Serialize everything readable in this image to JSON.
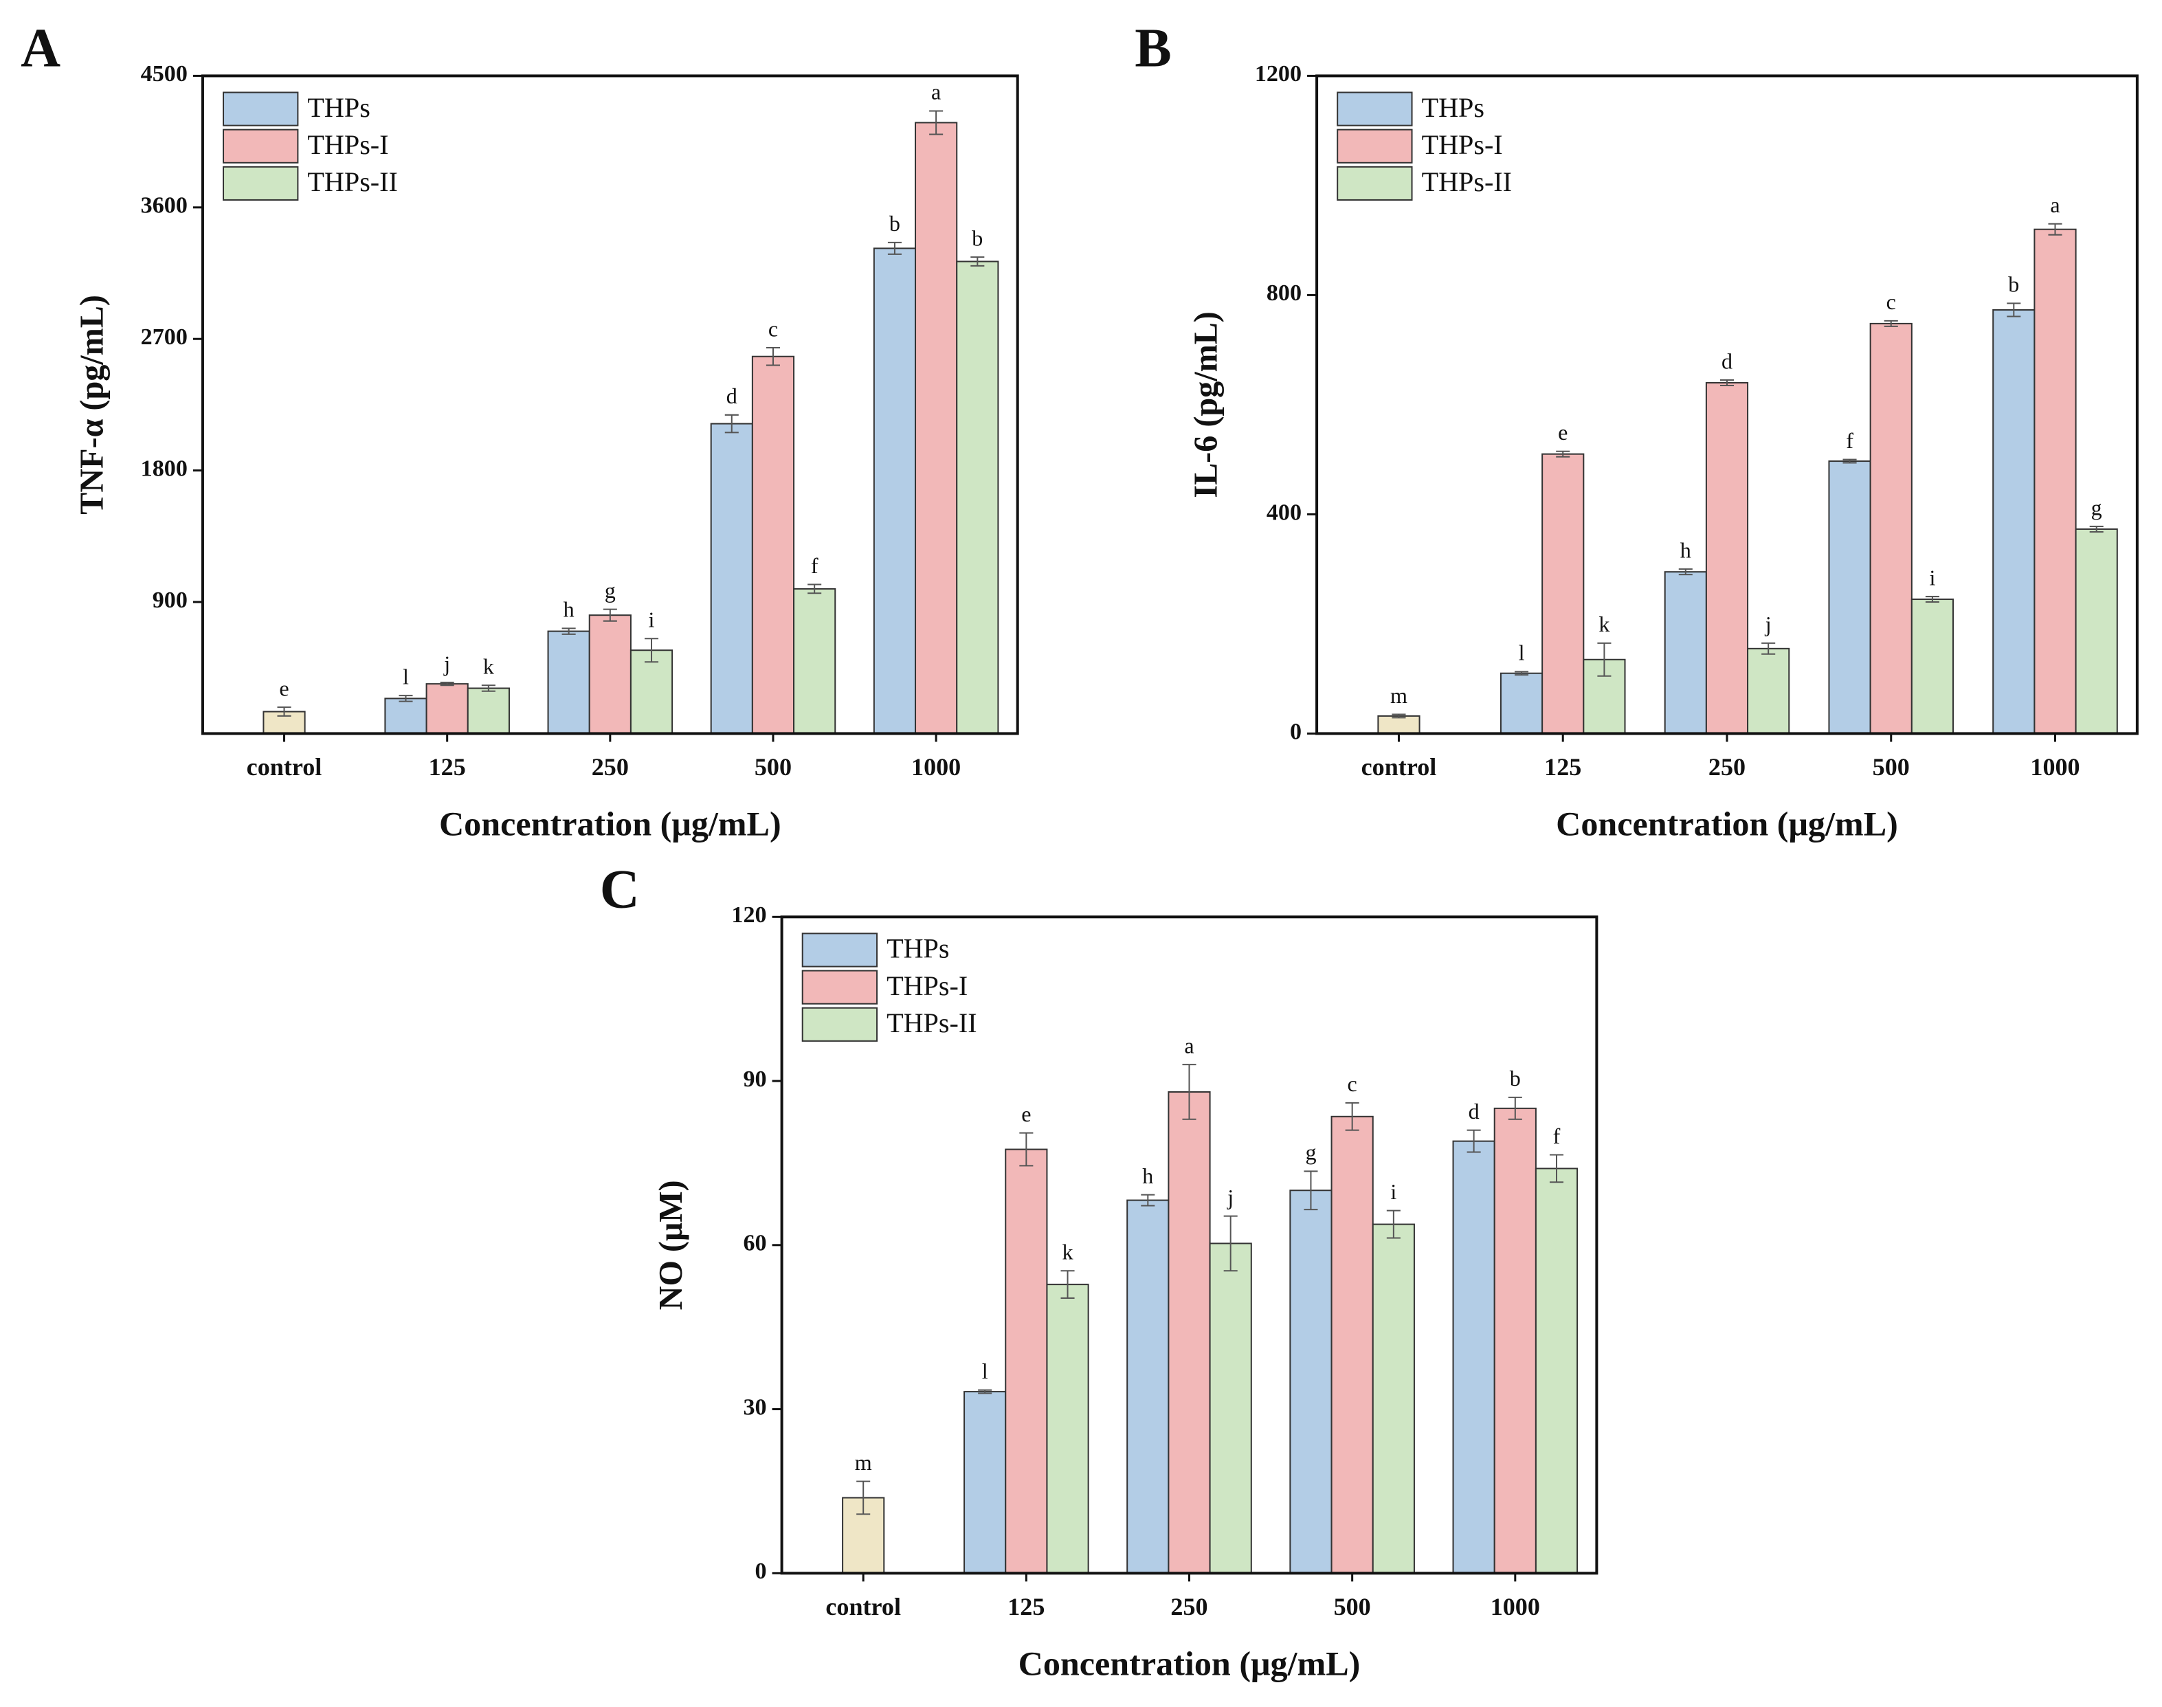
{
  "chart_data": [
    {
      "type": "bar",
      "panel": "A",
      "ylabel": "TNF-α (pg/mL)",
      "xlabel": "Concentration (μg/mL)",
      "categories": [
        "control",
        "125",
        "250",
        "500",
        "1000"
      ],
      "ylim": [
        0,
        4500
      ],
      "yticks": [
        900,
        1800,
        2700,
        3600,
        4500
      ],
      "control": {
        "value": 150,
        "error": 30,
        "label": "e",
        "color": "#efe6c6"
      },
      "series": [
        {
          "name": "THPs",
          "color": "#b3cde6",
          "values": [
            null,
            240,
            700,
            2120,
            3320
          ],
          "errors": [
            null,
            20,
            20,
            60,
            40
          ],
          "labels": [
            null,
            "l",
            "h",
            "d",
            "b"
          ]
        },
        {
          "name": "THPs-I",
          "color": "#f2b8b8",
          "values": [
            null,
            340,
            810,
            2580,
            4180
          ],
          "errors": [
            null,
            10,
            40,
            60,
            80
          ],
          "labels": [
            null,
            "j",
            "g",
            "c",
            "a"
          ]
        },
        {
          "name": "THPs-II",
          "color": "#cfe6c4",
          "values": [
            null,
            310,
            570,
            990,
            3230
          ],
          "errors": [
            null,
            20,
            80,
            30,
            30
          ],
          "labels": [
            null,
            "k",
            "i",
            "f",
            "b"
          ]
        }
      ]
    },
    {
      "type": "bar",
      "panel": "B",
      "ylabel": "IL-6 (pg/mL)",
      "xlabel": "Concentration (μg/mL)",
      "categories": [
        "control",
        "125",
        "250",
        "500",
        "1000"
      ],
      "ylim": [
        0,
        1200
      ],
      "yticks": [
        0,
        400,
        800,
        1200
      ],
      "control": {
        "value": 32,
        "error": 3,
        "label": "m",
        "color": "#efe6c6"
      },
      "series": [
        {
          "name": "THPs",
          "color": "#b3cde6",
          "values": [
            null,
            110,
            295,
            497,
            773
          ],
          "errors": [
            null,
            3,
            5,
            3,
            12
          ],
          "labels": [
            null,
            "l",
            "h",
            "f",
            "b"
          ]
        },
        {
          "name": "THPs-I",
          "color": "#f2b8b8",
          "values": [
            null,
            510,
            640,
            748,
            920
          ],
          "errors": [
            null,
            5,
            5,
            5,
            10
          ],
          "labels": [
            null,
            "e",
            "d",
            "c",
            "a"
          ]
        },
        {
          "name": "THPs-II",
          "color": "#cfe6c4",
          "values": [
            null,
            135,
            155,
            245,
            373
          ],
          "errors": [
            null,
            30,
            10,
            5,
            5
          ],
          "labels": [
            null,
            "k",
            "j",
            "i",
            "g"
          ]
        }
      ]
    },
    {
      "type": "bar",
      "panel": "C",
      "ylabel": "NO (μM)",
      "xlabel": "Concentration (μg/mL)",
      "categories": [
        "control",
        "125",
        "250",
        "500",
        "1000"
      ],
      "ylim": [
        0,
        120
      ],
      "yticks": [
        0,
        30,
        60,
        90,
        120
      ],
      "control": {
        "value": 13.8,
        "error": 3,
        "label": "m",
        "color": "#efe6c6"
      },
      "series": [
        {
          "name": "THPs",
          "color": "#b3cde6",
          "values": [
            null,
            33.2,
            68.2,
            70,
            79
          ],
          "errors": [
            null,
            0.3,
            1,
            3.5,
            2
          ],
          "labels": [
            null,
            "l",
            "h",
            "g",
            "d"
          ]
        },
        {
          "name": "THPs-I",
          "color": "#f2b8b8",
          "values": [
            null,
            77.5,
            88,
            83.5,
            85
          ],
          "errors": [
            null,
            3,
            5,
            2.5,
            2
          ],
          "labels": [
            null,
            "e",
            "a",
            "c",
            "b"
          ]
        },
        {
          "name": "THPs-II",
          "color": "#cfe6c4",
          "values": [
            null,
            52.8,
            60.3,
            63.8,
            74
          ],
          "errors": [
            null,
            2.5,
            5,
            2.5,
            2.5
          ],
          "labels": [
            null,
            "k",
            "j",
            "i",
            "f"
          ]
        }
      ]
    }
  ]
}
